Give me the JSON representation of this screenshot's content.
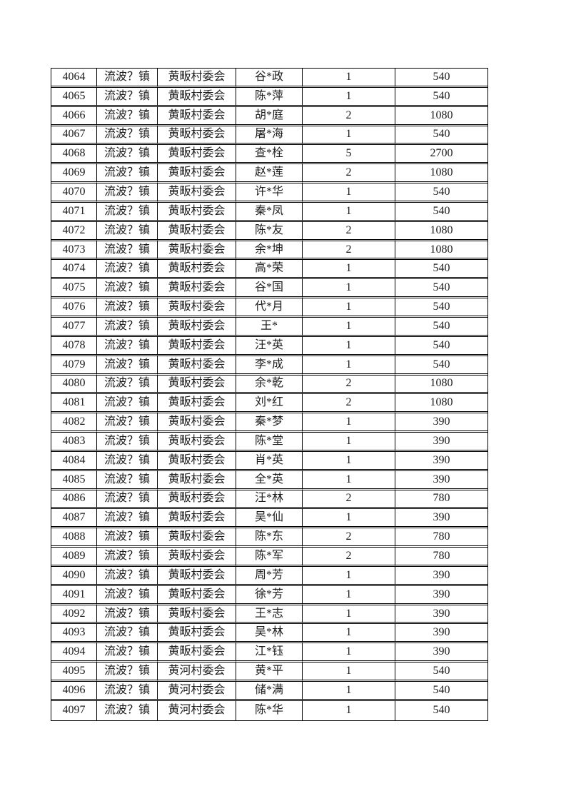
{
  "colors": {
    "page_background": "#ffffff",
    "table_border": "#000000",
    "text": "#1c1c1c"
  },
  "table": {
    "columns": [
      "serial-number",
      "town",
      "village-committee",
      "person-name",
      "count",
      "amount"
    ],
    "rows": [
      [
        "4064",
        "流波？镇",
        "黄畈村委会",
        "谷*政",
        "1",
        "540"
      ],
      [
        "4065",
        "流波？镇",
        "黄畈村委会",
        "陈*萍",
        "1",
        "540"
      ],
      [
        "4066",
        "流波？镇",
        "黄畈村委会",
        "胡*庭",
        "2",
        "1080"
      ],
      [
        "4067",
        "流波？镇",
        "黄畈村委会",
        "屠*海",
        "1",
        "540"
      ],
      [
        "4068",
        "流波？镇",
        "黄畈村委会",
        "查*栓",
        "5",
        "2700"
      ],
      [
        "4069",
        "流波？镇",
        "黄畈村委会",
        "赵*莲",
        "2",
        "1080"
      ],
      [
        "4070",
        "流波？镇",
        "黄畈村委会",
        "许*华",
        "1",
        "540"
      ],
      [
        "4071",
        "流波？镇",
        "黄畈村委会",
        "秦*凤",
        "1",
        "540"
      ],
      [
        "4072",
        "流波？镇",
        "黄畈村委会",
        "陈*友",
        "2",
        "1080"
      ],
      [
        "4073",
        "流波？镇",
        "黄畈村委会",
        "余*坤",
        "2",
        "1080"
      ],
      [
        "4074",
        "流波？镇",
        "黄畈村委会",
        "高*荣",
        "1",
        "540"
      ],
      [
        "4075",
        "流波？镇",
        "黄畈村委会",
        "谷*国",
        "1",
        "540"
      ],
      [
        "4076",
        "流波？镇",
        "黄畈村委会",
        "代*月",
        "1",
        "540"
      ],
      [
        "4077",
        "流波？镇",
        "黄畈村委会",
        "王*",
        "1",
        "540"
      ],
      [
        "4078",
        "流波？镇",
        "黄畈村委会",
        "汪*英",
        "1",
        "540"
      ],
      [
        "4079",
        "流波？镇",
        "黄畈村委会",
        "李*成",
        "1",
        "540"
      ],
      [
        "4080",
        "流波？镇",
        "黄畈村委会",
        "余*乾",
        "2",
        "1080"
      ],
      [
        "4081",
        "流波？镇",
        "黄畈村委会",
        "刘*红",
        "2",
        "1080"
      ],
      [
        "4082",
        "流波？镇",
        "黄畈村委会",
        "秦*梦",
        "1",
        "390"
      ],
      [
        "4083",
        "流波？镇",
        "黄畈村委会",
        "陈*堂",
        "1",
        "390"
      ],
      [
        "4084",
        "流波？镇",
        "黄畈村委会",
        "肖*英",
        "1",
        "390"
      ],
      [
        "4085",
        "流波？镇",
        "黄畈村委会",
        "全*英",
        "1",
        "390"
      ],
      [
        "4086",
        "流波？镇",
        "黄畈村委会",
        "汪*林",
        "2",
        "780"
      ],
      [
        "4087",
        "流波？镇",
        "黄畈村委会",
        "吴*仙",
        "1",
        "390"
      ],
      [
        "4088",
        "流波？镇",
        "黄畈村委会",
        "陈*东",
        "2",
        "780"
      ],
      [
        "4089",
        "流波？镇",
        "黄畈村委会",
        "陈*军",
        "2",
        "780"
      ],
      [
        "4090",
        "流波？镇",
        "黄畈村委会",
        "周*芳",
        "1",
        "390"
      ],
      [
        "4091",
        "流波？镇",
        "黄畈村委会",
        "徐*芳",
        "1",
        "390"
      ],
      [
        "4092",
        "流波？镇",
        "黄畈村委会",
        "王*志",
        "1",
        "390"
      ],
      [
        "4093",
        "流波？镇",
        "黄畈村委会",
        "吴*林",
        "1",
        "390"
      ],
      [
        "4094",
        "流波？镇",
        "黄畈村委会",
        "江*钰",
        "1",
        "390"
      ],
      [
        "4095",
        "流波？镇",
        "黄河村委会",
        "黄*平",
        "1",
        "540"
      ],
      [
        "4096",
        "流波？镇",
        "黄河村委会",
        "储*满",
        "1",
        "540"
      ],
      [
        "4097",
        "流波？镇",
        "黄河村委会",
        "陈*华",
        "1",
        "540"
      ]
    ]
  }
}
